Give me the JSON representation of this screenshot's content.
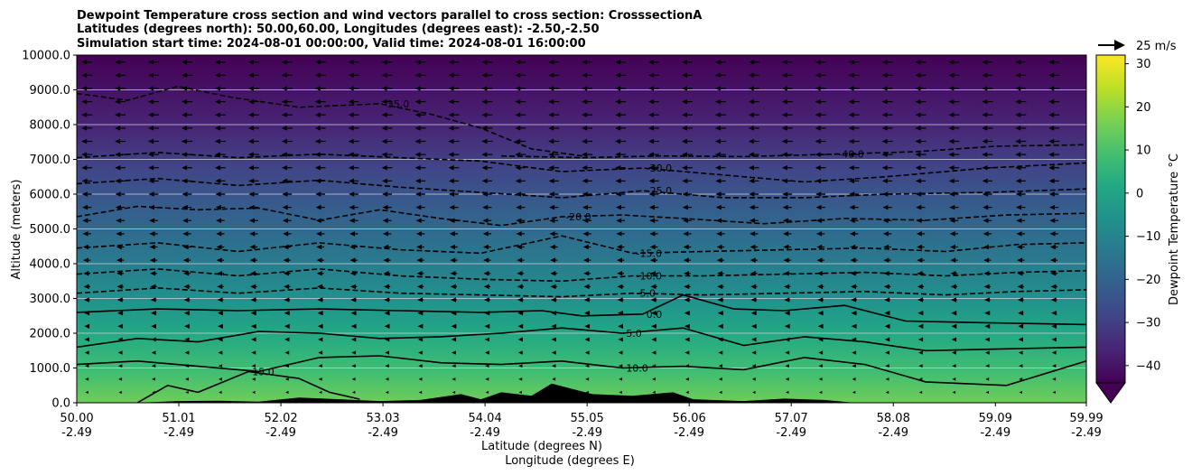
{
  "title_lines": [
    "Dewpoint Temperature cross section and wind vectors parallel to cross section: CrosssectionA",
    "Latitudes (degrees north): 50.00,60.00, Longitudes (degrees east): -2.50,-2.50",
    "Simulation start time: 2024-08-01 00:00:00, Valid time: 2024-08-01 16:00:00"
  ],
  "colors": {
    "colormap": [
      "#440154",
      "#482475",
      "#414487",
      "#355f8d",
      "#2a788e",
      "#21918c",
      "#22a884",
      "#44bf70",
      "#7ad151",
      "#bddf26",
      "#fde725"
    ],
    "contour": "#000000",
    "terrain": "#000000",
    "gridline": "#d0d0d0"
  },
  "chart_data": {
    "type": "contourf",
    "ylabel": "Altitude (meters)",
    "xlabel_lines": [
      "Latitude (degrees N)",
      "Longitude (degrees E)"
    ],
    "x_ticks": [
      {
        "lat": "50.00",
        "lon": "-2.49"
      },
      {
        "lat": "51.01",
        "lon": "-2.49"
      },
      {
        "lat": "52.02",
        "lon": "-2.49"
      },
      {
        "lat": "53.03",
        "lon": "-2.49"
      },
      {
        "lat": "54.04",
        "lon": "-2.49"
      },
      {
        "lat": "55.05",
        "lon": "-2.49"
      },
      {
        "lat": "56.06",
        "lon": "-2.49"
      },
      {
        "lat": "57.07",
        "lon": "-2.49"
      },
      {
        "lat": "58.08",
        "lon": "-2.49"
      },
      {
        "lat": "59.09",
        "lon": "-2.49"
      },
      {
        "lat": "59.99",
        "lon": "-2.49"
      }
    ],
    "xlim": [
      50.0,
      59.99
    ],
    "ylim": [
      0,
      10000
    ],
    "y_ticks": [
      "0.0",
      "1000.0",
      "2000.0",
      "3000.0",
      "4000.0",
      "5000.0",
      "6000.0",
      "7000.0",
      "8000.0",
      "9000.0",
      "10000.0"
    ],
    "y_tick_values": [
      0,
      1000,
      2000,
      3000,
      4000,
      5000,
      6000,
      7000,
      8000,
      9000,
      10000
    ],
    "grid": "horizontal",
    "colorbar": {
      "label": "Dewpoint Temperature °C",
      "ticks": [
        "−40",
        "−30",
        "−20",
        "−10",
        "0",
        "10",
        "20",
        "30"
      ],
      "tick_values": [
        -40,
        -30,
        -20,
        -10,
        0,
        10,
        20,
        30
      ],
      "range": [
        -44,
        32
      ],
      "extend": "min"
    },
    "quiver_key": {
      "label": "25 m/s",
      "speed": 25
    },
    "wind": "westward vectors, stronger aloft",
    "contour_lines": [
      {
        "level": -40.0,
        "label": "-40.0",
        "style": "dashed",
        "points": [
          [
            54.2,
            7100
          ],
          [
            55.0,
            7050
          ],
          [
            55.8,
            7100
          ],
          [
            56.6,
            7080
          ],
          [
            57.5,
            7150
          ],
          [
            58.3,
            7220
          ],
          [
            59.1,
            7380
          ],
          [
            59.99,
            7420
          ]
        ]
      },
      {
        "level": -35.0,
        "label": "-35.0",
        "style": "dashed",
        "points": [
          [
            50.0,
            8900
          ],
          [
            50.5,
            8700
          ],
          [
            51.0,
            9100
          ],
          [
            51.5,
            8800
          ],
          [
            52.2,
            8500
          ],
          [
            53.0,
            8600
          ],
          [
            53.5,
            8300
          ],
          [
            54.0,
            7900
          ],
          [
            54.5,
            7300
          ],
          [
            55.0,
            7100
          ]
        ]
      },
      {
        "level": -30.0,
        "label": "-30.0",
        "style": "dashed",
        "points": [
          [
            50.0,
            7050
          ],
          [
            50.8,
            7200
          ],
          [
            51.6,
            7050
          ],
          [
            52.4,
            7150
          ],
          [
            53.2,
            7050
          ],
          [
            54.0,
            6950
          ],
          [
            54.8,
            6650
          ],
          [
            55.6,
            6750
          ],
          [
            56.4,
            6550
          ],
          [
            57.2,
            6350
          ],
          [
            58.0,
            6500
          ],
          [
            59.0,
            6750
          ],
          [
            59.99,
            6900
          ]
        ]
      },
      {
        "level": -25.0,
        "label": "-25.0",
        "style": "dashed",
        "points": [
          [
            50.0,
            6300
          ],
          [
            50.8,
            6450
          ],
          [
            51.6,
            6250
          ],
          [
            52.4,
            6400
          ],
          [
            53.2,
            6200
          ],
          [
            54.0,
            6050
          ],
          [
            54.8,
            5900
          ],
          [
            55.6,
            6100
          ],
          [
            56.4,
            5900
          ],
          [
            57.2,
            5900
          ],
          [
            58.0,
            6000
          ],
          [
            59.0,
            6050
          ],
          [
            59.99,
            6150
          ]
        ]
      },
      {
        "level": -20.0,
        "label": "-20.0",
        "style": "dashed",
        "points": [
          [
            50.0,
            5350
          ],
          [
            50.6,
            5650
          ],
          [
            51.2,
            5550
          ],
          [
            51.8,
            5600
          ],
          [
            52.4,
            5250
          ],
          [
            53.0,
            5550
          ],
          [
            53.6,
            5300
          ],
          [
            54.2,
            5100
          ],
          [
            54.8,
            5350
          ],
          [
            55.4,
            5400
          ],
          [
            56.0,
            5300
          ],
          [
            56.8,
            5150
          ],
          [
            57.6,
            5300
          ],
          [
            58.4,
            5250
          ],
          [
            59.2,
            5400
          ],
          [
            59.99,
            5450
          ]
        ]
      },
      {
        "level": -15.0,
        "label": "-15.0",
        "style": "dashed",
        "points": [
          [
            50.0,
            4450
          ],
          [
            50.8,
            4600
          ],
          [
            51.6,
            4350
          ],
          [
            52.4,
            4600
          ],
          [
            53.2,
            4400
          ],
          [
            54.0,
            4300
          ],
          [
            54.8,
            4800
          ],
          [
            55.5,
            4300
          ],
          [
            56.2,
            4350
          ],
          [
            57.0,
            4400
          ],
          [
            57.8,
            4450
          ],
          [
            58.6,
            4350
          ],
          [
            59.3,
            4550
          ],
          [
            59.99,
            4600
          ]
        ]
      },
      {
        "level": -10.0,
        "label": "-10.0",
        "style": "dashed",
        "points": [
          [
            50.0,
            3700
          ],
          [
            50.8,
            3850
          ],
          [
            51.6,
            3650
          ],
          [
            52.4,
            3850
          ],
          [
            53.2,
            3650
          ],
          [
            54.0,
            3550
          ],
          [
            54.8,
            3500
          ],
          [
            55.5,
            3650
          ],
          [
            56.2,
            3650
          ],
          [
            57.0,
            3700
          ],
          [
            57.8,
            3750
          ],
          [
            58.6,
            3650
          ],
          [
            59.3,
            3750
          ],
          [
            59.99,
            3800
          ]
        ]
      },
      {
        "level": -5.0,
        "label": "-5.0",
        "style": "dashed",
        "points": [
          [
            50.0,
            3150
          ],
          [
            50.8,
            3300
          ],
          [
            51.6,
            3150
          ],
          [
            52.4,
            3300
          ],
          [
            53.2,
            3150
          ],
          [
            54.0,
            3100
          ],
          [
            54.8,
            3050
          ],
          [
            55.5,
            3150
          ],
          [
            56.2,
            3100
          ],
          [
            57.0,
            3150
          ],
          [
            57.8,
            3200
          ],
          [
            58.6,
            3100
          ],
          [
            59.3,
            3200
          ],
          [
            59.99,
            3250
          ]
        ]
      },
      {
        "level": 0.0,
        "label": "0.0",
        "style": "solid",
        "points": [
          [
            50.0,
            2600
          ],
          [
            50.8,
            2700
          ],
          [
            51.6,
            2650
          ],
          [
            52.4,
            2700
          ],
          [
            53.2,
            2650
          ],
          [
            54.0,
            2600
          ],
          [
            54.6,
            2650
          ],
          [
            55.0,
            2500
          ],
          [
            55.6,
            2550
          ],
          [
            56.0,
            3100
          ],
          [
            56.5,
            2700
          ],
          [
            57.0,
            2650
          ],
          [
            57.6,
            2800
          ],
          [
            58.2,
            2350
          ],
          [
            59.0,
            2300
          ],
          [
            59.99,
            2250
          ]
        ]
      },
      {
        "level": 5.0,
        "label": "5.0",
        "style": "solid",
        "points": [
          [
            50.0,
            1600
          ],
          [
            50.6,
            1850
          ],
          [
            51.2,
            1750
          ],
          [
            51.8,
            2050
          ],
          [
            52.4,
            2000
          ],
          [
            53.0,
            1850
          ],
          [
            53.6,
            1900
          ],
          [
            54.2,
            2000
          ],
          [
            54.8,
            2150
          ],
          [
            55.4,
            2000
          ],
          [
            56.0,
            2150
          ],
          [
            56.6,
            1650
          ],
          [
            57.2,
            1900
          ],
          [
            57.8,
            1750
          ],
          [
            58.4,
            1500
          ],
          [
            59.2,
            1550
          ],
          [
            59.99,
            1600
          ]
        ]
      },
      {
        "level": 10.0,
        "label": "10.0",
        "style": "solid",
        "points": [
          [
            50.0,
            1100
          ],
          [
            50.6,
            1200
          ],
          [
            51.2,
            1050
          ],
          [
            51.8,
            900
          ],
          [
            52.4,
            1300
          ],
          [
            53.0,
            1350
          ],
          [
            53.6,
            1150
          ],
          [
            54.2,
            1100
          ],
          [
            54.8,
            1200
          ],
          [
            55.4,
            1000
          ],
          [
            56.0,
            1050
          ],
          [
            56.6,
            950
          ],
          [
            57.2,
            1300
          ],
          [
            57.8,
            1100
          ],
          [
            58.4,
            600
          ],
          [
            59.2,
            500
          ],
          [
            59.99,
            1200
          ]
        ]
      },
      {
        "level": 15.0,
        "label": "15.0",
        "style": "solid",
        "points": [
          [
            50.6,
            0
          ],
          [
            50.9,
            500
          ],
          [
            51.2,
            300
          ],
          [
            51.7,
            900
          ],
          [
            52.2,
            700
          ],
          [
            52.5,
            300
          ],
          [
            52.8,
            100
          ]
        ]
      }
    ],
    "terrain_profile": [
      [
        50.0,
        0
      ],
      [
        50.6,
        0
      ],
      [
        51.0,
        50
      ],
      [
        51.4,
        60
      ],
      [
        51.8,
        30
      ],
      [
        52.2,
        150
      ],
      [
        52.6,
        100
      ],
      [
        53.0,
        50
      ],
      [
        53.4,
        80
      ],
      [
        53.8,
        250
      ],
      [
        54.0,
        100
      ],
      [
        54.2,
        300
      ],
      [
        54.5,
        200
      ],
      [
        54.7,
        550
      ],
      [
        54.9,
        400
      ],
      [
        55.1,
        250
      ],
      [
        55.5,
        200
      ],
      [
        55.9,
        300
      ],
      [
        56.1,
        100
      ],
      [
        56.6,
        50
      ],
      [
        57.0,
        120
      ],
      [
        57.4,
        80
      ],
      [
        57.7,
        0
      ],
      [
        59.99,
        0
      ]
    ]
  }
}
